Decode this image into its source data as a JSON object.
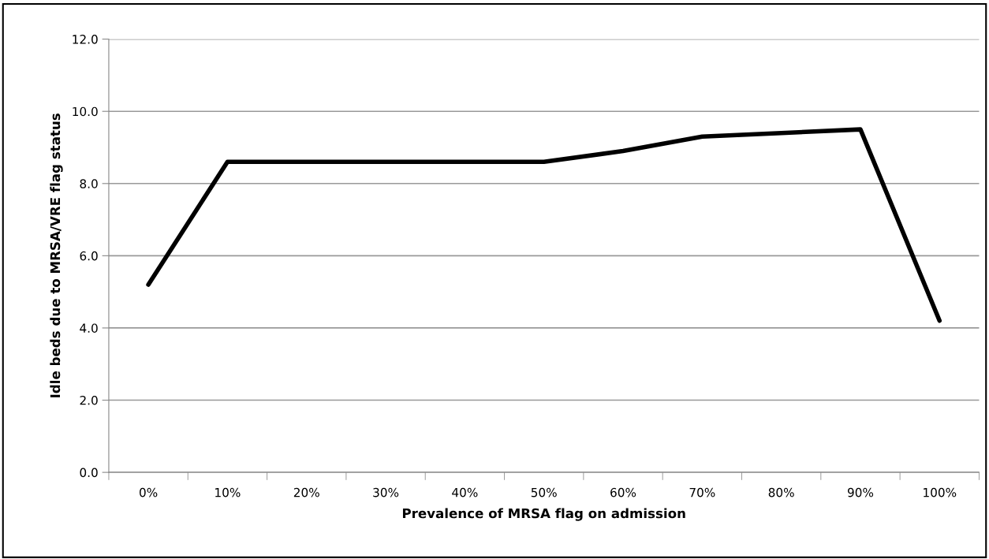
{
  "chart_data": {
    "type": "line",
    "xlabel": "Prevalence of MRSA flag on admission",
    "ylabel": "Idle beds due to MRSA/VRE flag status",
    "categories": [
      "0%",
      "10%",
      "20%",
      "30%",
      "40%",
      "50%",
      "60%",
      "70%",
      "80%",
      "90%",
      "100%"
    ],
    "series": [
      {
        "color": "#000000",
        "values": [
          5.2,
          8.6,
          8.6,
          8.6,
          8.6,
          8.6,
          8.9,
          9.3,
          9.4,
          9.5,
          4.2
        ]
      }
    ],
    "ylim": [
      0,
      12
    ],
    "yticks": [
      {
        "value": 0,
        "label": "0.0"
      },
      {
        "value": 2,
        "label": "2.0"
      },
      {
        "value": 4,
        "label": "4.0"
      },
      {
        "value": 6,
        "label": "6.0"
      },
      {
        "value": 8,
        "label": "8.0"
      },
      {
        "value": 10,
        "label": "10.0"
      },
      {
        "value": 12,
        "label": "12.0"
      }
    ],
    "grid": "y",
    "marker": "none",
    "line_style": "solid"
  }
}
